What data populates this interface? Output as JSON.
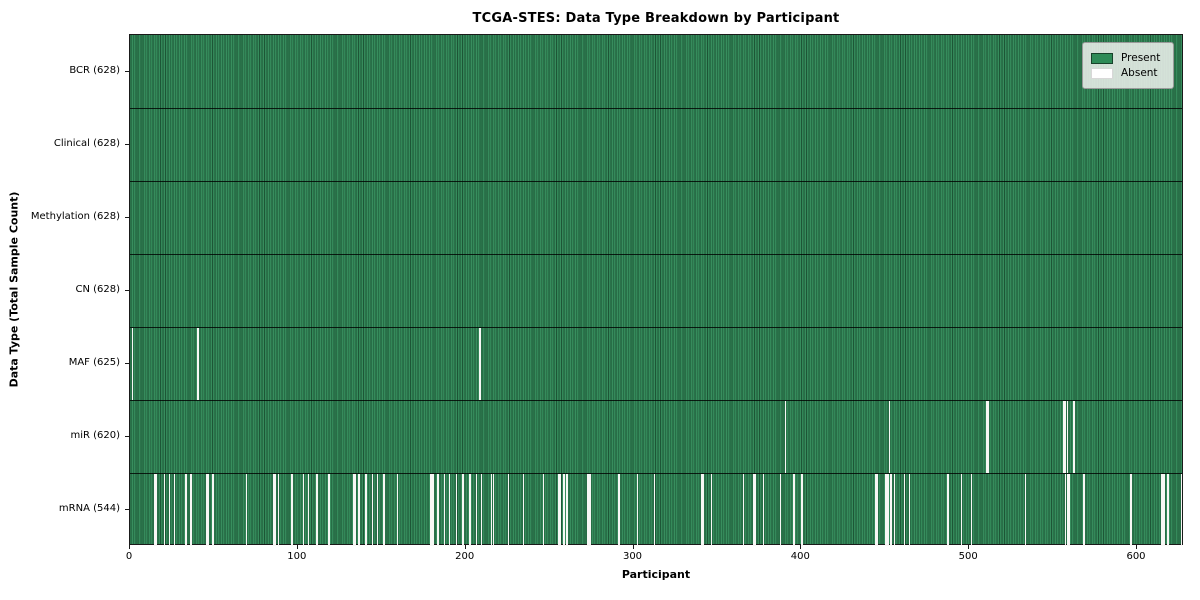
{
  "chart_data": {
    "type": "heatmap",
    "title": "TCGA-STES: Data Type Breakdown by Participant",
    "xlabel": "Participant",
    "ylabel": "Data Type (Total Sample Count)",
    "n_participants": 628,
    "xlim": [
      0,
      628
    ],
    "x_ticks": [
      "0",
      "100",
      "200",
      "300",
      "400",
      "500",
      "600"
    ],
    "x_tick_values": [
      0,
      100,
      200,
      300,
      400,
      500,
      600
    ],
    "grid": false,
    "legend_position": "upper right",
    "legend": [
      {
        "label": "Present",
        "color": "#2e8b57"
      },
      {
        "label": "Absent",
        "color": "#ffffff"
      }
    ],
    "colors": {
      "present": "#2e8b57",
      "present_edge": "#1d5636",
      "absent": "#f7f7f5",
      "axis": "#1a1a1a"
    },
    "rows": [
      {
        "label": "BCR (628)",
        "data_type": "BCR",
        "present_count": 628,
        "absent_participants": []
      },
      {
        "label": "Clinical (628)",
        "data_type": "Clinical",
        "present_count": 628,
        "absent_participants": []
      },
      {
        "label": "Methylation (628)",
        "data_type": "Methylation",
        "present_count": 628,
        "absent_participants": []
      },
      {
        "label": "CN (628)",
        "data_type": "CN",
        "present_count": 628,
        "absent_participants": []
      },
      {
        "label": "MAF (625)",
        "data_type": "MAF",
        "present_count": 625,
        "absent_participants": [
          1,
          40,
          208
        ]
      },
      {
        "label": "miR (620)",
        "data_type": "miR",
        "present_count": 620,
        "absent_participants": [
          390,
          452,
          510,
          511,
          556,
          557,
          558,
          562
        ]
      },
      {
        "label": "mRNA (544)",
        "data_type": "mRNA",
        "present_count": 544,
        "absent_participants": [
          14,
          15,
          20,
          23,
          26,
          33,
          36,
          45,
          46,
          49,
          69,
          85,
          86,
          88,
          96,
          103,
          106,
          111,
          118,
          133,
          134,
          136,
          140,
          144,
          147,
          151,
          159,
          179,
          180,
          183,
          187,
          190,
          194,
          198,
          202,
          206,
          209,
          215,
          216,
          225,
          234,
          246,
          255,
          256,
          258,
          260,
          272,
          273,
          274,
          291,
          302,
          312,
          340,
          341,
          346,
          365,
          371,
          372,
          377,
          387,
          395,
          400,
          444,
          445,
          450,
          451,
          453,
          455,
          461,
          464,
          487,
          495,
          501,
          533,
          557,
          558,
          559,
          568,
          596,
          614,
          615,
          616,
          618,
          626
        ]
      }
    ]
  }
}
